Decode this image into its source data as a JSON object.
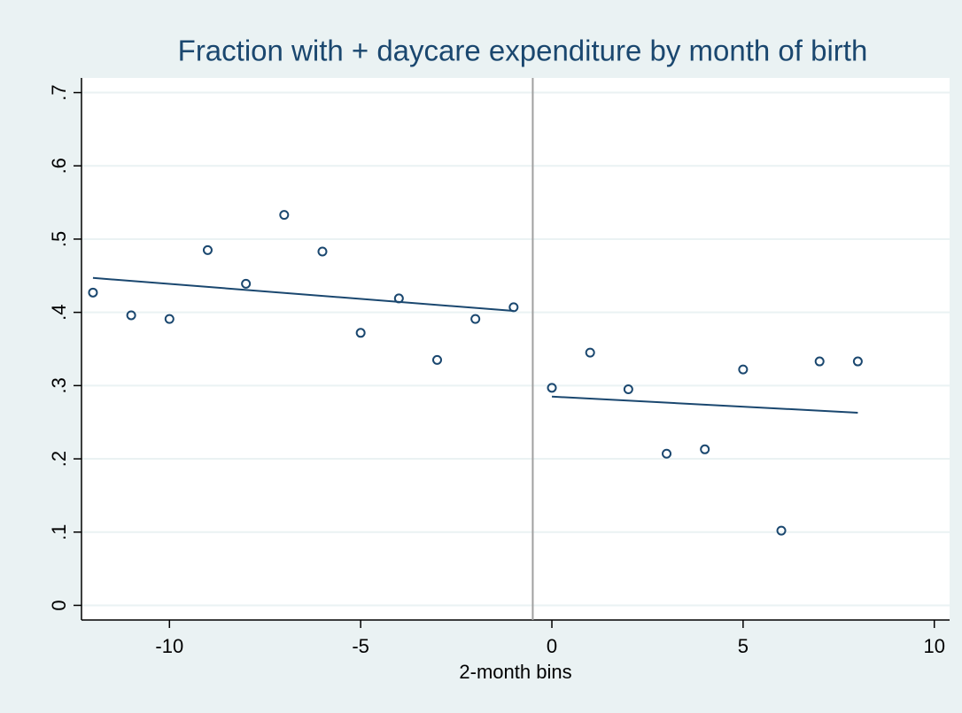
{
  "chart_data": {
    "type": "scatter",
    "title": "Fraction with + daycare expenditure by month of birth",
    "x_label": "2-month bins",
    "x": [
      -12,
      -11,
      -10,
      -9,
      -8,
      -7,
      -6,
      -5,
      -4,
      -3,
      -2,
      -1,
      0,
      1,
      2,
      3,
      4,
      5,
      6,
      7,
      8
    ],
    "values": [
      0.427,
      0.396,
      0.391,
      0.485,
      0.439,
      0.533,
      0.483,
      0.372,
      0.419,
      0.335,
      0.391,
      0.407,
      0.297,
      0.345,
      0.295,
      0.207,
      0.213,
      0.322,
      0.102,
      0.333,
      0.333
    ],
    "color": "#1a476f",
    "fit_lines": [
      {
        "x": [
          -12,
          -1
        ],
        "values": [
          0.447,
          0.402
        ]
      },
      {
        "x": [
          0,
          8
        ],
        "values": [
          0.285,
          0.263
        ]
      }
    ],
    "xline": -0.5,
    "xlim": [
      -12.3,
      10.4
    ],
    "ylim": [
      -0.02,
      0.72
    ],
    "xticks": [
      -10,
      -5,
      0,
      5,
      10
    ],
    "yticks": [
      0,
      {
        "value": 0.1,
        "label": ".1"
      },
      {
        "value": 0.2,
        "label": ".2"
      },
      {
        "value": 0.3,
        "label": ".3"
      },
      {
        "value": 0.4,
        "label": ".4"
      },
      {
        "value": 0.5,
        "label": ".5"
      },
      {
        "value": 0.6,
        "label": ".6"
      },
      {
        "value": 0.7,
        "label": ".7"
      }
    ],
    "grid": true
  }
}
